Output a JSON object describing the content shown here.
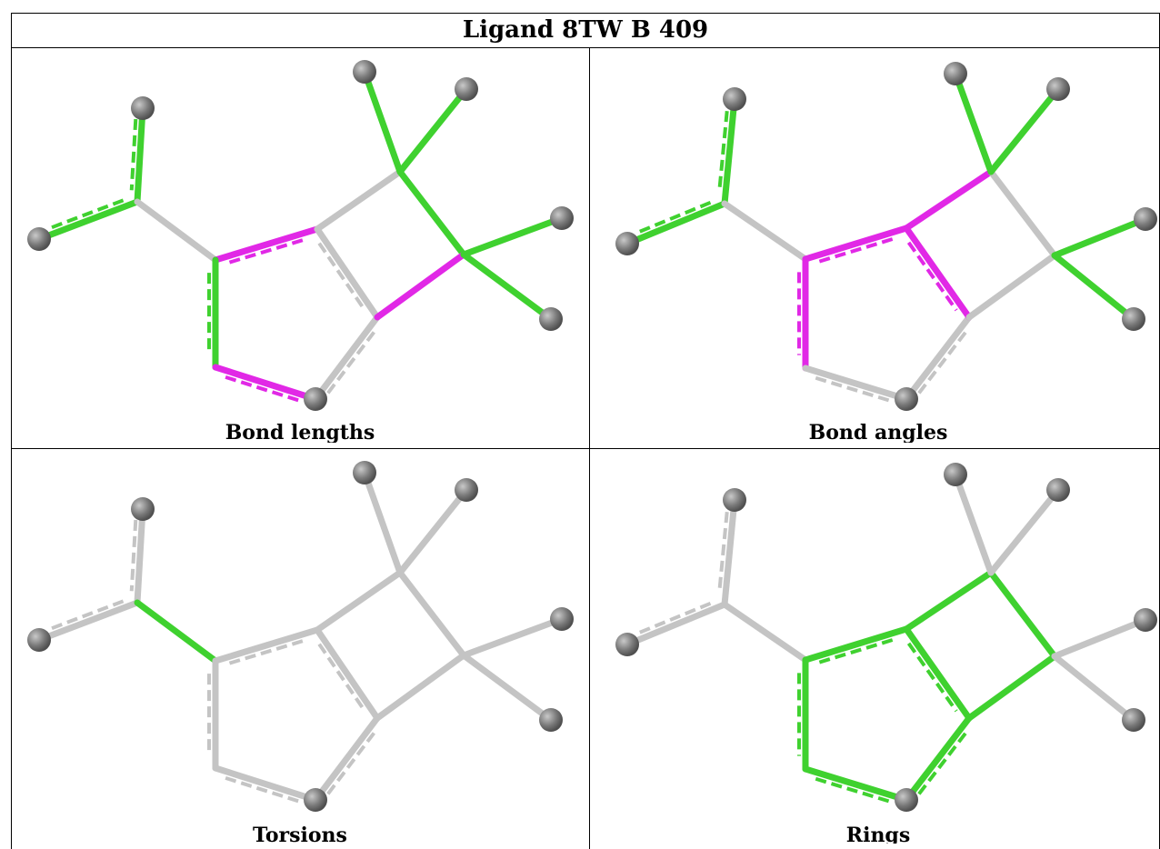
{
  "title": "Ligand 8TW B 409",
  "panels": [
    {
      "caption": "Bond lengths"
    },
    {
      "caption": "Bond angles"
    },
    {
      "caption": "Torsions"
    },
    {
      "caption": "Rings"
    }
  ],
  "colors": {
    "outlier_green": "#3fd12f",
    "outlier_magenta": "#e128e6",
    "normal_bond": "#c4c4c4",
    "atom": "#7a7a7a",
    "border": "#000000"
  }
}
